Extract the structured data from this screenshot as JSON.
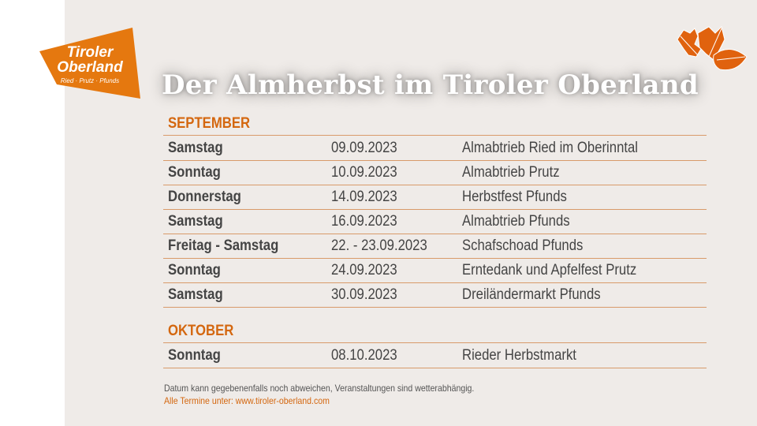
{
  "logo": {
    "line1": "Tiroler",
    "line2": "Oberland",
    "tagline": "Ried · Prutz · Pfunds",
    "color": "#e5780f"
  },
  "title": "Der Almherbst im Tiroler Oberland",
  "accent": "#d4670f",
  "september": {
    "heading": "SEPTEMBER",
    "rows": [
      {
        "day": "Samstag",
        "date": "09.09.2023",
        "event": "Almabtrieb Ried im Oberinntal"
      },
      {
        "day": "Sonntag",
        "date": "10.09.2023",
        "event": "Almabtrieb Prutz"
      },
      {
        "day": "Donnerstag",
        "date": "14.09.2023",
        "event": "Herbstfest Pfunds"
      },
      {
        "day": "Samstag",
        "date": "16.09.2023",
        "event": "Almabtrieb Pfunds"
      },
      {
        "day": "Freitag - Samstag",
        "date": "22. - 23.09.2023",
        "event": "Schafschoad Pfunds"
      },
      {
        "day": "Sonntag",
        "date": "24.09.2023",
        "event": "Erntedank und Apfelfest Prutz"
      },
      {
        "day": "Samstag",
        "date": "30.09.2023",
        "event": "Dreiländermarkt Pfunds"
      }
    ]
  },
  "oktober": {
    "heading": "OKTOBER",
    "rows": [
      {
        "day": "Sonntag",
        "date": "08.10.2023",
        "event": "Rieder Herbstmarkt"
      }
    ]
  },
  "footer": {
    "note": "Datum kann gegebenenfalls noch abweichen,  Veranstaltungen sind wetterabhängig.",
    "link": "Alle Termine  unter:  www.tiroler-oberland.com"
  }
}
